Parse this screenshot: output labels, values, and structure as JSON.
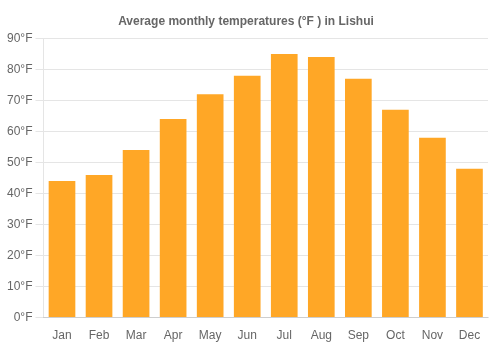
{
  "chart_data": {
    "type": "bar",
    "title": "Average monthly temperatures (°F ) in Lishui",
    "categories": [
      "Jan",
      "Feb",
      "Mar",
      "Apr",
      "May",
      "Jun",
      "Jul",
      "Aug",
      "Sep",
      "Oct",
      "Nov",
      "Dec"
    ],
    "values": [
      44,
      46,
      54,
      64,
      72,
      78,
      85,
      84,
      77,
      67,
      58,
      48
    ],
    "color": "#FFA726",
    "ylim": [
      0,
      90
    ],
    "yticks": [
      {
        "value": 0,
        "label": "0°F"
      },
      {
        "value": 10,
        "label": "10°F"
      },
      {
        "value": 20,
        "label": "20°F"
      },
      {
        "value": 30,
        "label": "30°F"
      },
      {
        "value": 40,
        "label": "40°F"
      },
      {
        "value": 50,
        "label": "50°F"
      },
      {
        "value": 60,
        "label": "60°F"
      },
      {
        "value": 70,
        "label": "70°F"
      },
      {
        "value": 80,
        "label": "80°F"
      },
      {
        "value": 90,
        "label": "90°F"
      }
    ],
    "grid": true
  }
}
